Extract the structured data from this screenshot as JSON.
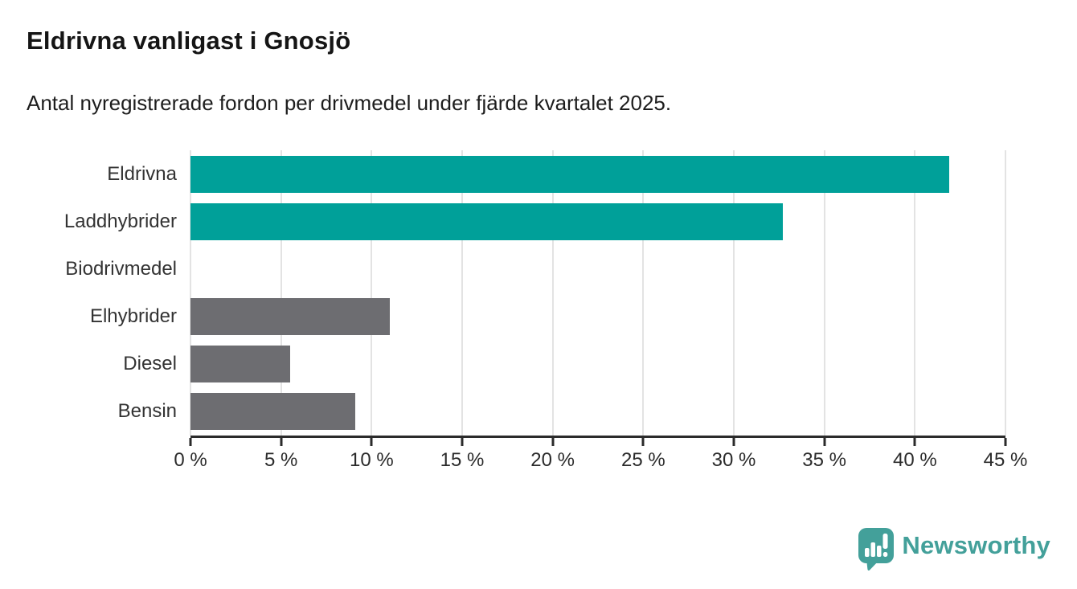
{
  "header": {
    "title": "Eldrivna vanligast i Gnosjö",
    "subtitle": "Antal nyregistrerade fordon per drivmedel under fjärde kvartalet 2025."
  },
  "chart_data": {
    "type": "bar",
    "orientation": "horizontal",
    "title": "Eldrivna vanligast i Gnosjö",
    "subtitle": "Antal nyregistrerade fordon per drivmedel under fjärde kvartalet 2025.",
    "categories": [
      "Eldrivna",
      "Laddhybrider",
      "Biodrivmedel",
      "Elhybrider",
      "Diesel",
      "Bensin"
    ],
    "values": [
      41.9,
      32.7,
      0,
      11.0,
      5.5,
      9.1
    ],
    "unit": "%",
    "bar_colors": [
      "#00a099",
      "#00a099",
      "#6d6d71",
      "#6d6d71",
      "#6d6d71",
      "#6d6d71"
    ],
    "xlim": [
      0,
      45
    ],
    "xticks": [
      0,
      5,
      10,
      15,
      20,
      25,
      30,
      35,
      40,
      45
    ],
    "xtick_labels": [
      "0 %",
      "5 %",
      "10 %",
      "15 %",
      "20 %",
      "25 %",
      "30 %",
      "35 %",
      "40 %",
      "45 %"
    ],
    "grid": "vertical",
    "legend": false,
    "xlabel": "",
    "ylabel": ""
  },
  "branding": {
    "logo_text": "Newsworthy",
    "logo_color": "#43a09a"
  },
  "colors": {
    "highlight_bar": "#00a099",
    "default_bar": "#6d6d71",
    "gridline": "#e3e3e3",
    "axis": "#2b2b2b",
    "title_text": "#151515",
    "label_text": "#333333"
  }
}
